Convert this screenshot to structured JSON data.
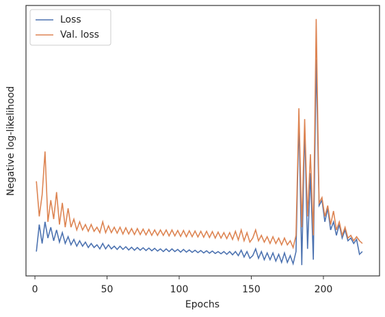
{
  "chart_data": {
    "type": "line",
    "xlabel": "Epochs",
    "ylabel": "Negative log-likelihood",
    "x": [
      1,
      3,
      5,
      7,
      9,
      11,
      13,
      15,
      17,
      19,
      21,
      23,
      25,
      27,
      29,
      31,
      33,
      35,
      37,
      39,
      41,
      43,
      45,
      47,
      49,
      51,
      53,
      55,
      57,
      59,
      61,
      63,
      65,
      67,
      69,
      71,
      73,
      75,
      77,
      79,
      81,
      83,
      85,
      87,
      89,
      91,
      93,
      95,
      97,
      99,
      101,
      103,
      105,
      107,
      109,
      111,
      113,
      115,
      117,
      119,
      121,
      123,
      125,
      127,
      129,
      131,
      133,
      135,
      137,
      139,
      141,
      143,
      145,
      147,
      149,
      151,
      153,
      155,
      157,
      159,
      161,
      163,
      165,
      167,
      169,
      171,
      173,
      175,
      177,
      179,
      181,
      183,
      185,
      187,
      189,
      191,
      193,
      195,
      197,
      199,
      201,
      203,
      205,
      207,
      209,
      211,
      213,
      215,
      217,
      219,
      221,
      223,
      225,
      227
    ],
    "series": [
      {
        "name": "Loss",
        "color": "#4c72b0",
        "values": [
          9,
          19,
          12,
          20,
          14,
          18,
          13,
          17,
          12.5,
          16,
          12,
          14.5,
          11.5,
          13.5,
          11,
          13,
          11,
          12.5,
          10.5,
          12,
          10.5,
          11.5,
          10,
          12,
          10,
          11.5,
          10,
          11,
          9.8,
          11,
          9.8,
          10.8,
          9.6,
          10.6,
          9.5,
          10.5,
          9.5,
          10.4,
          9.4,
          10.3,
          9.3,
          10.2,
          9.2,
          10,
          9,
          10,
          9,
          10,
          9,
          9.8,
          8.8,
          9.8,
          8.8,
          9.6,
          8.7,
          9.5,
          8.6,
          9.4,
          8.5,
          9.3,
          8.4,
          9.2,
          8.3,
          9,
          8.2,
          9,
          8,
          9,
          7.8,
          9,
          7.5,
          9.5,
          7,
          9,
          6.5,
          7.5,
          10,
          6.5,
          9,
          6,
          8.5,
          6,
          8.5,
          5.5,
          8,
          5,
          8.5,
          5,
          7.5,
          4.5,
          9,
          58,
          4,
          55,
          10,
          38,
          6,
          80,
          26,
          28,
          20,
          25,
          17,
          20,
          15,
          19,
          14,
          17,
          13,
          14,
          12,
          13.5,
          8,
          9
        ]
      },
      {
        "name": "Val. loss",
        "color": "#dd8452",
        "values": [
          35,
          22,
          30,
          46,
          20,
          28,
          21,
          31,
          19,
          27,
          18,
          25,
          18,
          21,
          17,
          20,
          17,
          19,
          16.5,
          19,
          16.5,
          18,
          16,
          20,
          16,
          18.5,
          16,
          18,
          15.8,
          18,
          15.5,
          17.8,
          15.5,
          17.5,
          15.3,
          17.5,
          15.3,
          17.3,
          15.2,
          17.2,
          15,
          17,
          15,
          17,
          15,
          17,
          14.8,
          17,
          14.8,
          16.8,
          14.6,
          16.8,
          14.5,
          16.7,
          14.5,
          16.6,
          14.4,
          16.5,
          14.3,
          16.5,
          14.2,
          16.4,
          14,
          16.2,
          14,
          16,
          13.8,
          16,
          13.5,
          16.5,
          13.3,
          17,
          13,
          16,
          12.5,
          14,
          17,
          13,
          15,
          12.5,
          14.5,
          12,
          14.5,
          12,
          14,
          11.5,
          14,
          11.5,
          13,
          10.5,
          15,
          62,
          18,
          58,
          22,
          45,
          15,
          95,
          27,
          29,
          22,
          26,
          19,
          24,
          17,
          20,
          15,
          18,
          14,
          15,
          13,
          14.5,
          13,
          12
        ]
      }
    ],
    "xlim": [
      -6.2,
      238.9
    ],
    "ylim": [
      0,
      100
    ],
    "xticks": [
      0,
      50,
      100,
      150,
      200
    ],
    "legend": "upper left"
  }
}
